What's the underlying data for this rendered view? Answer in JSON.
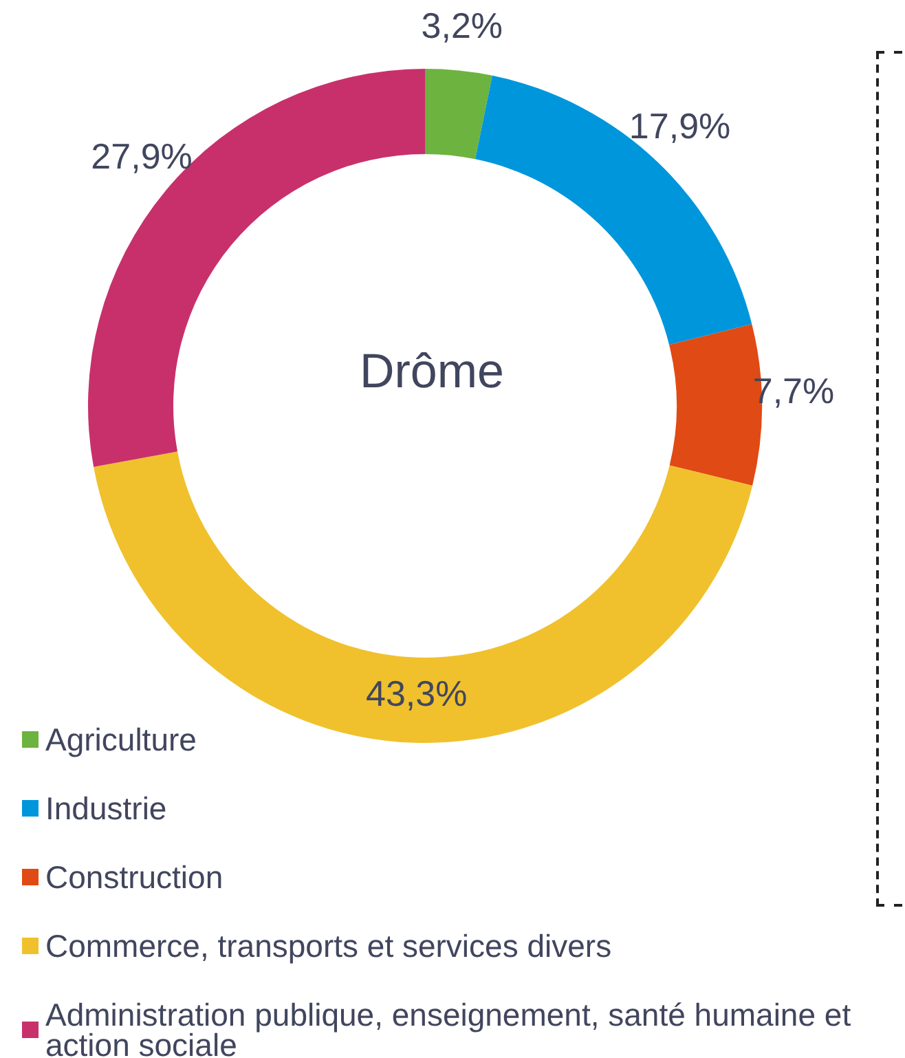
{
  "chart_data": {
    "type": "donut",
    "title": "Drôme",
    "categories": [
      "Agriculture",
      "Industrie",
      "Construction",
      "Commerce, transports et services divers",
      "Administration publique, enseignement, santé humaine et action sociale"
    ],
    "values": [
      3.2,
      17.9,
      7.7,
      43.3,
      27.9
    ],
    "colors": [
      "#6db33f",
      "#0096db",
      "#e04a14",
      "#f0c12d",
      "#c8306c"
    ],
    "value_labels": [
      "3,2%",
      "17,9%",
      "7,7%",
      "43,3%",
      "27,9%"
    ],
    "legend": "bottom left"
  }
}
